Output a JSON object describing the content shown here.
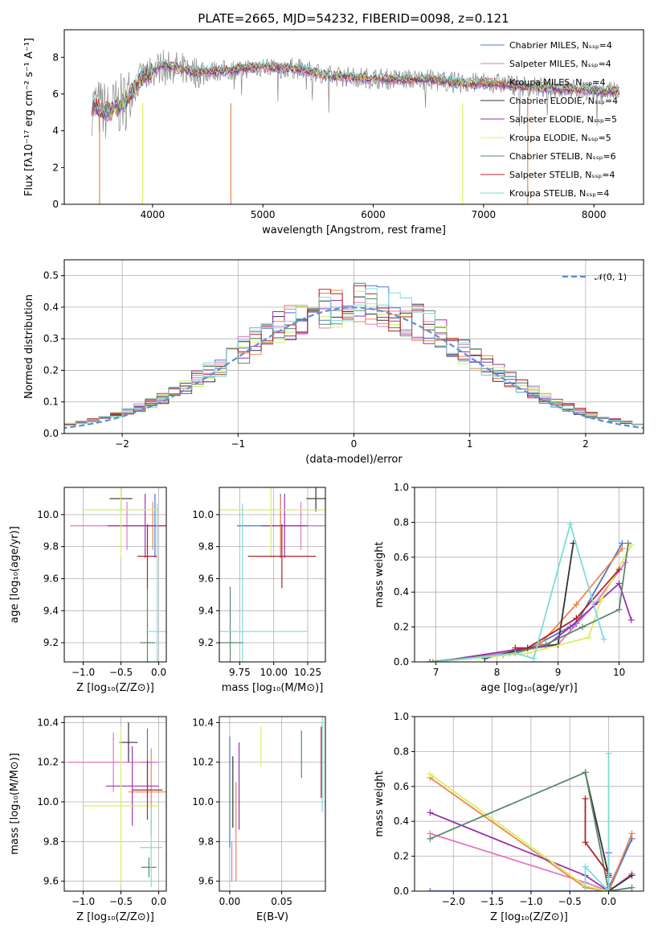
{
  "chart_data": [
    {
      "type": "line",
      "title": "PLATE=2665, MJD=54232, FIBERID=0098, z=0.121",
      "xlabel": "wavelength [Angstrom, rest frame]",
      "ylabel": "Flux [fλ10⁻¹⁷ erg cm⁻² s⁻¹ A⁻¹]",
      "xlim": [
        3200,
        8450
      ],
      "ylim": [
        0,
        9.5
      ],
      "xticks": [
        "4000",
        "5000",
        "6000",
        "7000",
        "8000"
      ],
      "yticks": [
        "0",
        "2",
        "4",
        "6",
        "8"
      ],
      "data_profile": {
        "x": [
          3450,
          3600,
          3750,
          3900,
          4100,
          4400,
          4700,
          5000,
          5300,
          5600,
          5900,
          6200,
          6500,
          6800,
          7100,
          7400,
          7700,
          8000,
          8200
        ],
        "y": [
          5.4,
          5.0,
          5.6,
          6.9,
          7.6,
          7.2,
          7.3,
          7.5,
          7.4,
          7.0,
          6.9,
          6.8,
          6.8,
          6.6,
          6.6,
          6.4,
          6.3,
          6.2,
          6.1
        ]
      },
      "model_dips": [
        {
          "x": 3520,
          "y": 0
        },
        {
          "x": 3910,
          "y": 0
        },
        {
          "x": 4710,
          "y": 0
        },
        {
          "x": 6810,
          "y": 0
        },
        {
          "x": 7400,
          "y": 0
        }
      ],
      "legend_position": "upper right",
      "grid": false
    },
    {
      "type": "step",
      "xlabel": "(data-model)/error",
      "ylabel": "Normed distribution",
      "xlim": [
        -2.5,
        2.5
      ],
      "ylim": [
        0,
        0.55
      ],
      "xticks": [
        "−2",
        "−1",
        "0",
        "1",
        "2"
      ],
      "yticks": [
        "0.0",
        "0.1",
        "0.2",
        "0.3",
        "0.4",
        "0.5"
      ],
      "bin_width": 0.1,
      "gaussian_label": "𝒩(0, 1)",
      "legend_position": "upper right",
      "grid": true
    },
    {
      "type": "errorbar",
      "xlabel": "Z [log₁₀(Z/Z⊙)]",
      "ylabel": "age  [log₁₀(age/yr)]",
      "xlim": [
        -1.25,
        0.1
      ],
      "ylim": [
        9.08,
        10.17
      ],
      "xticks": [
        "−1.0",
        "−0.5",
        "0.0"
      ],
      "yticks": [
        "9.2",
        "9.4",
        "9.6",
        "9.8",
        "10.0"
      ],
      "points": [
        {
          "x": -0.05,
          "y": 9.93,
          "xerr": 0.27,
          "yerr": 0.2
        },
        {
          "x": -0.42,
          "y": 9.93,
          "xerr": 0.75,
          "yerr": 0.15
        },
        {
          "x": -0.08,
          "y": 9.93,
          "xerr": 0.5,
          "yerr": 0.15
        },
        {
          "x": -0.5,
          "y": 10.1,
          "xerr": 0.15,
          "yerr": 0.08
        },
        {
          "x": -0.18,
          "y": 9.93,
          "xerr": 0.5,
          "yerr": 0.2
        },
        {
          "x": -0.5,
          "y": 10.03,
          "xerr": 0.5,
          "yerr": 0.3
        },
        {
          "x": -0.15,
          "y": 9.2,
          "xerr": 0.1,
          "yerr": 0.35
        },
        {
          "x": -0.15,
          "y": 9.74,
          "xerr": 0.13,
          "yerr": 0.2
        },
        {
          "x": -0.02,
          "y": 9.27,
          "xerr": 0.15,
          "yerr": 0.8
        }
      ],
      "grid": true
    },
    {
      "type": "errorbar",
      "xlabel": "mass [log₁₀(M/M⊙)]",
      "xlim": [
        9.6,
        10.38
      ],
      "ylim": [
        9.08,
        10.17
      ],
      "xticks": [
        "9.75",
        "10.00",
        "10.25"
      ],
      "yticks": [
        "9.2",
        "9.4",
        "9.6",
        "9.8",
        "10.0"
      ],
      "points": [
        {
          "x": 10.05,
          "y": 9.93,
          "xerr": 0.32,
          "yerr": 0.2
        },
        {
          "x": 10.2,
          "y": 9.93,
          "xerr": 0.2,
          "yerr": 0.15
        },
        {
          "x": 10.05,
          "y": 9.93,
          "xerr": 0.08,
          "yerr": 0.18
        },
        {
          "x": 10.31,
          "y": 10.1,
          "xerr": 0.07,
          "yerr": 0.08
        },
        {
          "x": 10.08,
          "y": 9.93,
          "xerr": 0.17,
          "yerr": 0.2
        },
        {
          "x": 9.98,
          "y": 10.03,
          "xerr": 0.4,
          "yerr": 0.3
        },
        {
          "x": 9.68,
          "y": 9.2,
          "xerr": 0.1,
          "yerr": 0.35
        },
        {
          "x": 10.06,
          "y": 9.74,
          "xerr": 0.25,
          "yerr": 0.2
        },
        {
          "x": 9.77,
          "y": 9.27,
          "xerr": 0.48,
          "yerr": 0.8
        }
      ],
      "grid": true
    },
    {
      "type": "line",
      "xlabel": "age  [log₁₀(age/yr)]",
      "ylabel": "mass weight",
      "xlim": [
        6.65,
        10.4
      ],
      "ylim": [
        0,
        1.0
      ],
      "xticks": [
        "7",
        "8",
        "9",
        "10"
      ],
      "yticks": [
        "0.0",
        "0.2",
        "0.4",
        "0.6",
        "0.8",
        "1.0"
      ],
      "grid": true
    },
    {
      "type": "errorbar",
      "xlabel": "Z [log₁₀(Z/Z⊙)]",
      "ylabel": "mass [log₁₀(M/M⊙)]",
      "xlim": [
        -1.25,
        0.1
      ],
      "ylim": [
        9.55,
        10.43
      ],
      "xticks": [
        "−1.0",
        "−0.5",
        "0.0"
      ],
      "yticks": [
        "9.6",
        "9.8",
        "10.0",
        "10.2",
        "10.4"
      ],
      "points": [
        {
          "x": -0.15,
          "y": 10.2,
          "xerr": 0.1,
          "yerr": 0.17
        },
        {
          "x": -0.6,
          "y": 10.2,
          "xerr": 0.6,
          "yerr": 0.15
        },
        {
          "x": -0.1,
          "y": 10.05,
          "xerr": 0.3,
          "yerr": 0.22
        },
        {
          "x": -0.4,
          "y": 10.3,
          "xerr": 0.12,
          "yerr": 0.1
        },
        {
          "x": -0.35,
          "y": 10.08,
          "xerr": 0.35,
          "yerr": 0.2
        },
        {
          "x": -0.5,
          "y": 9.98,
          "xerr": 0.5,
          "yerr": 0.4
        },
        {
          "x": -0.13,
          "y": 9.67,
          "xerr": 0.1,
          "yerr": 0.05
        },
        {
          "x": -0.15,
          "y": 10.06,
          "xerr": 0.2,
          "yerr": 0.15
        },
        {
          "x": -0.1,
          "y": 9.77,
          "xerr": 0.15,
          "yerr": 0.2
        }
      ],
      "grid": true
    },
    {
      "type": "errorbar",
      "xlabel": "E(B-V)",
      "xlim": [
        -0.01,
        0.092
      ],
      "ylim": [
        9.55,
        10.43
      ],
      "xticks": [
        "0.00",
        "0.05"
      ],
      "yticks": [
        "9.6",
        "9.8",
        "10.0",
        "10.2",
        "10.4"
      ],
      "points": [
        {
          "x": 0.0,
          "y": 10.05,
          "yerr": 0.28
        },
        {
          "x": 0.002,
          "y": 9.7,
          "yerr": 0.1
        },
        {
          "x": 0.006,
          "y": 9.85,
          "yerr": 0.25
        },
        {
          "x": 0.003,
          "y": 10.05,
          "yerr": 0.18
        },
        {
          "x": 0.009,
          "y": 10.08,
          "yerr": 0.22
        },
        {
          "x": 0.03,
          "y": 10.28,
          "yerr": 0.1
        },
        {
          "x": 0.069,
          "y": 10.24,
          "yerr": 0.12
        },
        {
          "x": 0.088,
          "y": 10.2,
          "yerr": 0.18
        },
        {
          "x": 0.089,
          "y": 10.2,
          "yerr": 0.25
        }
      ],
      "grid": true
    },
    {
      "type": "line",
      "xlabel": "Z [log₁₀(Z/Z⊙)]",
      "ylabel": "mass weight",
      "xlim": [
        -2.5,
        0.45
      ],
      "ylim": [
        0,
        1.0
      ],
      "xticks": [
        "−2.0",
        "−1.5",
        "−1.0",
        "−0.5",
        "0.0"
      ],
      "yticks": [
        "0.0",
        "0.2",
        "0.4",
        "0.6",
        "0.8",
        "1.0"
      ],
      "grid": true
    }
  ],
  "series": [
    {
      "name": "Chabrier MILES, Nₛₛₚ=4",
      "color": "#4878d0",
      "age_weights": {
        "x": [
          6.9,
          8.2,
          8.6,
          9.3,
          10.05
        ],
        "y": [
          0.0,
          0.05,
          0.09,
          0.22,
          0.68
        ]
      },
      "z_weights": {
        "x": [
          -2.3,
          0.0,
          0.3,
          0.0
        ],
        "y": [
          0.0,
          0.0,
          0.3,
          0.02
        ]
      }
    },
    {
      "name": "Salpeter MILES, Nₛₛₚ=4",
      "color": "#e377c2",
      "age_weights": {
        "x": [
          7.0,
          8.3,
          9.0,
          9.6,
          10.1
        ],
        "y": [
          0.0,
          0.06,
          0.1,
          0.33,
          0.57
        ]
      },
      "z_weights": {
        "x": [
          -2.3,
          -0.3,
          0.0,
          0.3
        ],
        "y": [
          0.33,
          0.05,
          0.0,
          0.1
        ]
      }
    },
    {
      "name": "Kroupa MILES, Nₛₛₚ=4",
      "color": "#ee854a",
      "age_weights": {
        "x": [
          6.95,
          8.1,
          8.7,
          9.3,
          10.05
        ],
        "y": [
          0.0,
          0.04,
          0.1,
          0.33,
          0.65
        ]
      },
      "z_weights": {
        "x": [
          -2.3,
          -0.3,
          0.0,
          0.3
        ],
        "y": [
          0.65,
          0.02,
          0.0,
          0.33
        ]
      }
    },
    {
      "name": "Chabrier ELODIE, Nₛₛₚ=4",
      "color": "#333333",
      "age_weights": {
        "x": [
          7.8,
          8.5,
          9.0,
          9.25
        ],
        "y": [
          0.02,
          0.08,
          0.1,
          0.68
        ]
      },
      "z_weights": {
        "x": [
          -0.3,
          0.0,
          0.0,
          0.3
        ],
        "y": [
          0.68,
          0.09,
          0.0,
          0.09
        ]
      }
    },
    {
      "name": "Salpeter ELODIE, Nₛₛₚ=5",
      "color": "#9b30b0",
      "age_weights": {
        "x": [
          7.0,
          8.3,
          8.8,
          9.2,
          10.0,
          10.2
        ],
        "y": [
          0.0,
          0.07,
          0.09,
          0.2,
          0.45,
          0.24
        ]
      },
      "z_weights": {
        "x": [
          -2.3,
          -0.3,
          0.0,
          0.0
        ],
        "y": [
          0.45,
          0.09,
          0.0,
          0.22
        ]
      }
    },
    {
      "name": "Kroupa ELODIE, Nₛₛₚ=5",
      "color": "#d4f060",
      "age_weights": {
        "x": [
          7.0,
          8.5,
          9.5,
          9.7,
          10.2
        ],
        "y": [
          0.0,
          0.05,
          0.14,
          0.35,
          0.67
        ]
      },
      "z_weights": {
        "x": [
          -2.3,
          -0.3,
          0.0
        ],
        "y": [
          0.67,
          0.03,
          0.0
        ]
      }
    },
    {
      "name": "Chabrier STELIB, Nₛₛₚ=6",
      "color": "#5a8a6a",
      "age_weights": {
        "x": [
          6.9,
          8.3,
          8.8,
          9.4,
          10.0,
          10.15
        ],
        "y": [
          0.0,
          0.05,
          0.1,
          0.2,
          0.3,
          0.68
        ]
      },
      "z_weights": {
        "x": [
          -2.3,
          -0.3,
          0.0,
          0.3
        ],
        "y": [
          0.3,
          0.68,
          0.0,
          0.02
        ]
      }
    },
    {
      "name": "Salpeter STELIB, Nₛₛₚ=4",
      "color": "#b22222",
      "age_weights": {
        "x": [
          8.3,
          8.5,
          9.3,
          10.0
        ],
        "y": [
          0.08,
          0.08,
          0.25,
          0.53
        ]
      },
      "z_weights": {
        "x": [
          -0.3,
          -0.3,
          0.0,
          0.0
        ],
        "y": [
          0.53,
          0.28,
          0.1,
          0.08
        ]
      }
    },
    {
      "name": "Kroupa STELIB, Nₛₛₚ=4",
      "color": "#7fdbdb",
      "age_weights": {
        "x": [
          7.0,
          8.3,
          8.6,
          9.2,
          9.75
        ],
        "y": [
          0.0,
          0.05,
          0.02,
          0.79,
          0.13
        ]
      },
      "z_weights": {
        "x": [
          -0.3,
          -0.3,
          0.0,
          0.0
        ],
        "y": [
          0.0,
          0.14,
          0.0,
          0.79
        ]
      }
    }
  ]
}
